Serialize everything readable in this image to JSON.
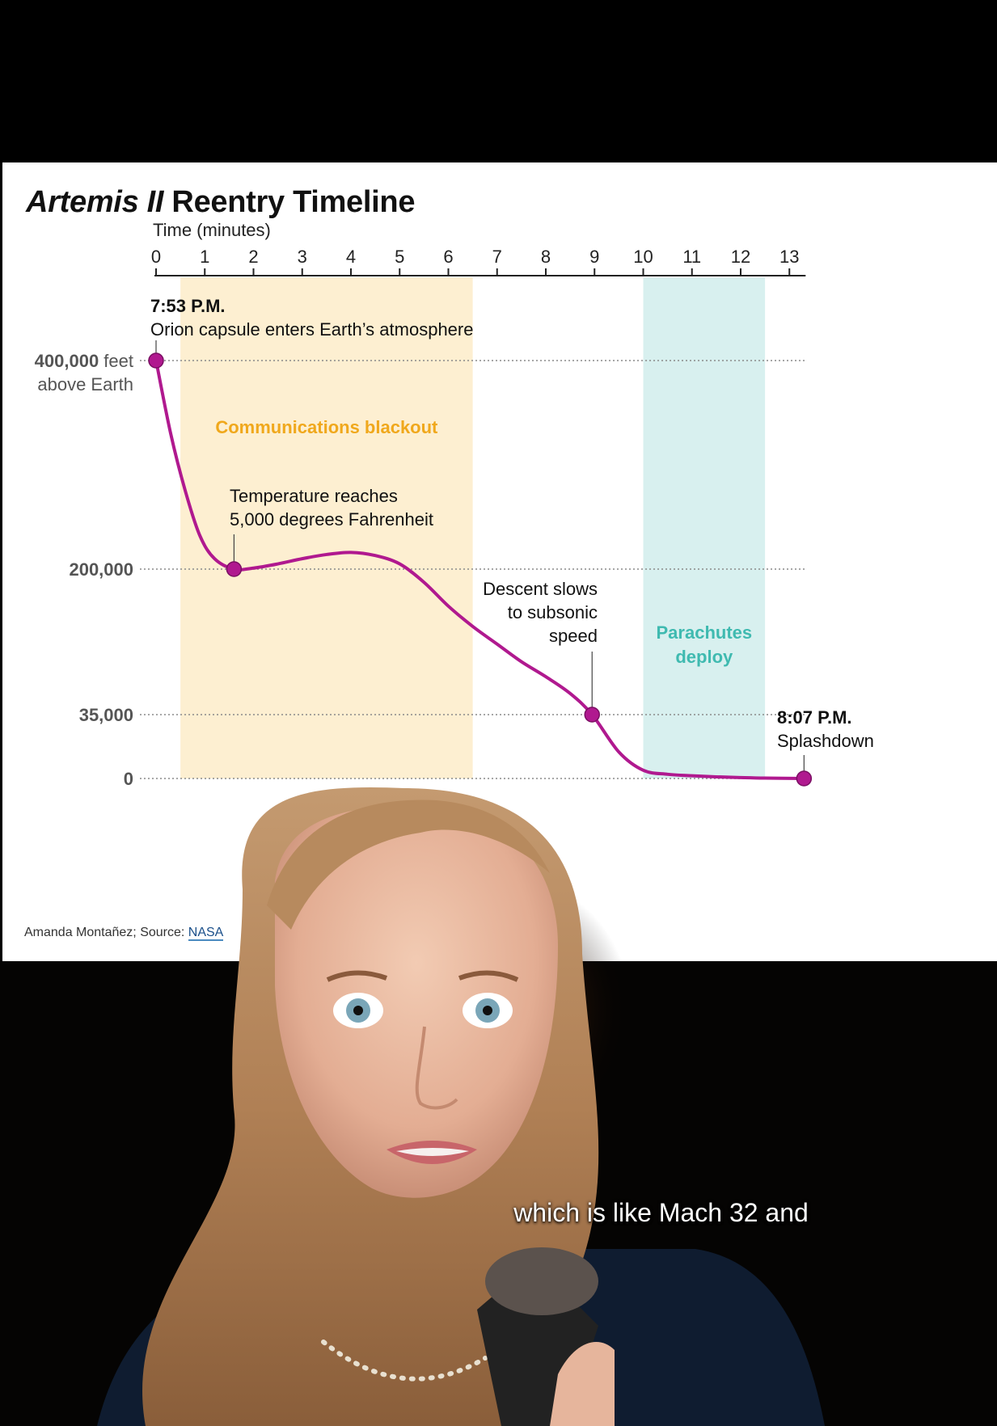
{
  "chart_title": {
    "italic": "Artemis II",
    "rest": " Reentry Timeline"
  },
  "credit": {
    "text": "Amanda Montañez; Source: ",
    "source": "NASA"
  },
  "caption": "which is like Mach 32 and",
  "colors": {
    "line": "#b0198f",
    "blackout_band": "#fdefd1",
    "blackout_label": "#f0a81c",
    "parachute_band": "#d8f0ef",
    "parachute_label": "#3fbab0",
    "axis": "#222222",
    "gridline": "#8a8a8a"
  },
  "chart_data": {
    "type": "line",
    "xlabel": "Time (minutes)",
    "x_ticks": [
      0,
      1,
      2,
      3,
      4,
      5,
      6,
      7,
      8,
      9,
      10,
      11,
      12,
      13
    ],
    "xlim": [
      0,
      13.3
    ],
    "y_scale": "non-linear",
    "y_levels": [
      {
        "value": 400000,
        "label": "400,000",
        "unit": " feet",
        "sublabel": "above Earth"
      },
      {
        "value": 200000,
        "label": "200,000"
      },
      {
        "value": 35000,
        "label": "35,000"
      },
      {
        "value": 0,
        "label": "0"
      }
    ],
    "series": [
      {
        "x": [
          0,
          0.3,
          0.6,
          0.9,
          1.2,
          1.6,
          2.0,
          2.5,
          3.0,
          3.5,
          4.0,
          4.5,
          5.0,
          5.5,
          6.0,
          6.5,
          7.0,
          7.5,
          8.0,
          8.5,
          8.95,
          9.5,
          10.0,
          10.5,
          11.0,
          11.5,
          12.0,
          12.5,
          13.3
        ],
        "y": [
          400000,
          330000,
          275000,
          232000,
          210000,
          200000,
          201000,
          205000,
          210000,
          214000,
          216000,
          213000,
          205000,
          185000,
          158000,
          135000,
          115000,
          95000,
          78000,
          59000,
          35000,
          14500,
          4500,
          2300,
          1500,
          900,
          500,
          200,
          0
        ]
      }
    ],
    "markers": [
      {
        "x": 0,
        "y": 400000
      },
      {
        "x": 1.6,
        "y": 200000
      },
      {
        "x": 8.95,
        "y": 35000
      },
      {
        "x": 13.3,
        "y": 0
      }
    ],
    "bands": [
      {
        "name": "Communications blackout",
        "x_start": 0.5,
        "x_end": 6.5
      },
      {
        "name": "Parachutes deploy",
        "x_start": 10.0,
        "x_end": 12.5
      }
    ],
    "annotations": [
      {
        "bold": "7:53 P.M.",
        "text": [
          "Orion capsule enters Earth’s atmosphere"
        ]
      },
      {
        "text": [
          "Temperature reaches",
          "5,000 degrees Fahrenheit"
        ]
      },
      {
        "text": [
          "Descent slows",
          "to subsonic",
          "speed"
        ]
      },
      {
        "bold": "8:07 P.M.",
        "text": [
          "Splashdown"
        ]
      }
    ]
  }
}
